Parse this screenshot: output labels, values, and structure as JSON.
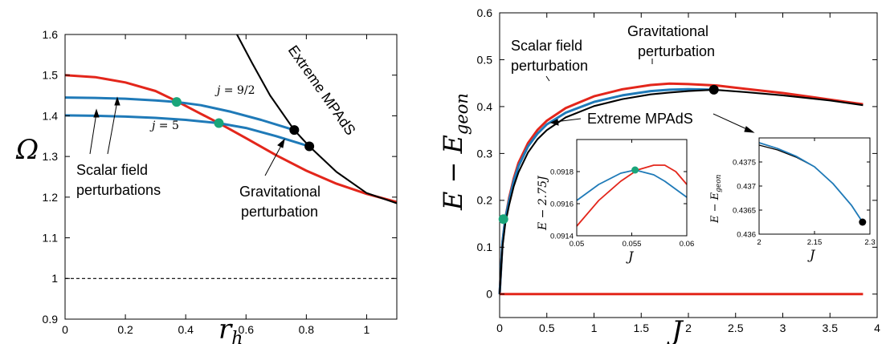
{
  "colors": {
    "red": "#e3261b",
    "blue": "#1f7ab8",
    "black": "#000000",
    "green": "#1aa57a"
  },
  "chart_data": [
    {
      "type": "line",
      "xlabel": "r_h",
      "ylabel": "Ω",
      "xlim": [
        0,
        1.1
      ],
      "ylim": [
        0.9,
        1.6
      ],
      "xticks": [
        "0",
        "0.2",
        "0.4",
        "0.6",
        "0.8",
        "1"
      ],
      "yticks": [
        "0.9",
        "1",
        "1.1",
        "1.2",
        "1.3",
        "1.4",
        "1.5",
        "1.6"
      ],
      "series": [
        {
          "name": "Gravitational perturbation",
          "color": "red",
          "x": [
            0,
            0.1,
            0.2,
            0.3,
            0.37,
            0.45,
            0.51,
            0.6,
            0.7,
            0.8,
            0.9,
            1.0,
            1.1
          ],
          "y": [
            1.5,
            1.495,
            1.482,
            1.461,
            1.436,
            1.405,
            1.382,
            1.345,
            1.303,
            1.265,
            1.233,
            1.208,
            1.188
          ]
        },
        {
          "name": "j = 9/2",
          "color": "blue",
          "x": [
            0,
            0.1,
            0.2,
            0.3,
            0.37,
            0.45,
            0.55,
            0.65,
            0.76
          ],
          "y": [
            1.445,
            1.444,
            1.442,
            1.438,
            1.434,
            1.426,
            1.41,
            1.39,
            1.365
          ]
        },
        {
          "name": "j = 5",
          "color": "blue",
          "x": [
            0,
            0.1,
            0.2,
            0.3,
            0.4,
            0.51,
            0.6,
            0.7,
            0.81
          ],
          "y": [
            1.401,
            1.4,
            1.398,
            1.395,
            1.39,
            1.382,
            1.37,
            1.35,
            1.325
          ]
        },
        {
          "name": "Extreme MPAdS",
          "color": "black",
          "x": [
            0.57,
            0.62,
            0.68,
            0.76,
            0.81,
            0.9,
            1.0,
            1.1
          ],
          "y": [
            1.6,
            1.53,
            1.45,
            1.365,
            1.325,
            1.262,
            1.21,
            1.185
          ]
        },
        {
          "name": "",
          "color": "black",
          "dashed": true,
          "x": [
            0,
            1.1
          ],
          "y": [
            1,
            1
          ]
        }
      ],
      "markers": [
        {
          "x": 0.37,
          "y": 1.434,
          "color": "green"
        },
        {
          "x": 0.51,
          "y": 1.382,
          "color": "green"
        },
        {
          "x": 0.76,
          "y": 1.365,
          "color": "black"
        },
        {
          "x": 0.81,
          "y": 1.325,
          "color": "black"
        }
      ],
      "annotations": {
        "j1": "j = 9/2",
        "j2": "j = 5",
        "scalar": [
          "Scalar field",
          "perturbations"
        ],
        "grav": [
          "Gravitational",
          "perturbation"
        ],
        "extreme": "Extreme MPAdS"
      }
    },
    {
      "type": "line",
      "xlabel": "J",
      "ylabel": "E − E_geon",
      "xlim": [
        0,
        4
      ],
      "ylim": [
        -0.05,
        0.6
      ],
      "xticks": [
        "0",
        "0.5",
        "1",
        "1.5",
        "2",
        "2.5",
        "3",
        "3.5",
        "4"
      ],
      "yticks": [
        "0",
        "0.1",
        "0.2",
        "0.3",
        "0.4",
        "0.5",
        "0.6"
      ],
      "series": [
        {
          "name": "Gravitational perturbation",
          "color": "red",
          "x": [
            0,
            0.03,
            0.06,
            0.1,
            0.15,
            0.2,
            0.3,
            0.4,
            0.5,
            0.7,
            1.0,
            1.3,
            1.6,
            1.8,
            2.0,
            2.3,
            2.6,
            3.0,
            3.5,
            3.85
          ],
          "y": [
            0,
            0.11,
            0.16,
            0.205,
            0.247,
            0.28,
            0.322,
            0.35,
            0.37,
            0.397,
            0.422,
            0.437,
            0.446,
            0.449,
            0.448,
            0.445,
            0.438,
            0.429,
            0.415,
            0.405
          ]
        },
        {
          "name": "Scalar field perturbation",
          "color": "blue",
          "x": [
            0,
            0.03,
            0.06,
            0.1,
            0.15,
            0.2,
            0.3,
            0.4,
            0.5,
            0.7,
            1.0,
            1.3,
            1.6,
            1.8,
            2.0,
            2.27
          ],
          "y": [
            0,
            0.11,
            0.16,
            0.2,
            0.242,
            0.273,
            0.315,
            0.342,
            0.362,
            0.387,
            0.41,
            0.424,
            0.433,
            0.436,
            0.437,
            0.436
          ]
        },
        {
          "name": "Extreme MPAdS",
          "color": "black",
          "x": [
            0,
            0.03,
            0.06,
            0.1,
            0.15,
            0.2,
            0.3,
            0.4,
            0.5,
            0.7,
            1.0,
            1.3,
            1.6,
            1.8,
            2.0,
            2.27,
            2.6,
            3.0,
            3.5,
            3.85
          ],
          "y": [
            0,
            0.1,
            0.15,
            0.19,
            0.23,
            0.26,
            0.302,
            0.33,
            0.35,
            0.377,
            0.401,
            0.416,
            0.426,
            0.43,
            0.433,
            0.436,
            0.431,
            0.424,
            0.413,
            0.403
          ]
        },
        {
          "name": "",
          "color": "red",
          "x": [
            0,
            3.85
          ],
          "y": [
            0,
            0
          ]
        }
      ],
      "markers": [
        {
          "x": 0.04,
          "y": 0.16,
          "color": "green"
        },
        {
          "x": 2.27,
          "y": 0.436,
          "color": "black"
        }
      ],
      "annotations": {
        "scalar": [
          "Scalar field",
          "perturbation"
        ],
        "grav": [
          "Gravitational",
          "perturbation"
        ],
        "extreme": "Extreme MPAdS"
      },
      "insets": [
        {
          "xlabel": "J",
          "ylabel": "E − 2.75J",
          "xlim": [
            0.05,
            0.06
          ],
          "ylim": [
            0.0914,
            0.092
          ],
          "xticks": [
            "0.05",
            "0.055",
            "0.06"
          ],
          "yticks": [
            "0.0914",
            "0.0916",
            "0.0918"
          ],
          "series": [
            {
              "color": "red",
              "x": [
                0.05,
                0.052,
                0.054,
                0.0555,
                0.057,
                0.058,
                0.059,
                0.06
              ],
              "y": [
                0.09146,
                0.09162,
                0.09174,
                0.09181,
                0.09184,
                0.09184,
                0.0918,
                0.09172
              ]
            },
            {
              "color": "blue",
              "x": [
                0.05,
                0.052,
                0.054,
                0.0553,
                0.057,
                0.058,
                0.06
              ],
              "y": [
                0.09162,
                0.09172,
                0.09179,
                0.09181,
                0.09178,
                0.09174,
                0.09164
              ]
            }
          ],
          "markers": [
            {
              "x": 0.0553,
              "y": 0.09181,
              "color": "green"
            }
          ]
        },
        {
          "xlabel": "J",
          "ylabel": "E − E_geon",
          "xlim": [
            2.0,
            2.3
          ],
          "ylim": [
            0.436,
            0.438
          ],
          "xticks": [
            "2",
            "2.15",
            "2.3"
          ],
          "yticks": [
            "0.436",
            "0.4365",
            "0.437",
            "0.4375"
          ],
          "series": [
            {
              "color": "black",
              "x": [
                2.0,
                2.05,
                2.1,
                2.15,
                2.2,
                2.25,
                2.28
              ],
              "y": [
                0.43785,
                0.43775,
                0.4376,
                0.4374,
                0.43705,
                0.4366,
                0.43625
              ]
            },
            {
              "color": "blue",
              "x": [
                2.0,
                2.05,
                2.1,
                2.15,
                2.2,
                2.25,
                2.28
              ],
              "y": [
                0.4379,
                0.43778,
                0.43762,
                0.4374,
                0.43705,
                0.4366,
                0.43625
              ]
            }
          ],
          "markers": [
            {
              "x": 2.28,
              "y": 0.43625,
              "color": "black"
            }
          ]
        }
      ]
    }
  ]
}
